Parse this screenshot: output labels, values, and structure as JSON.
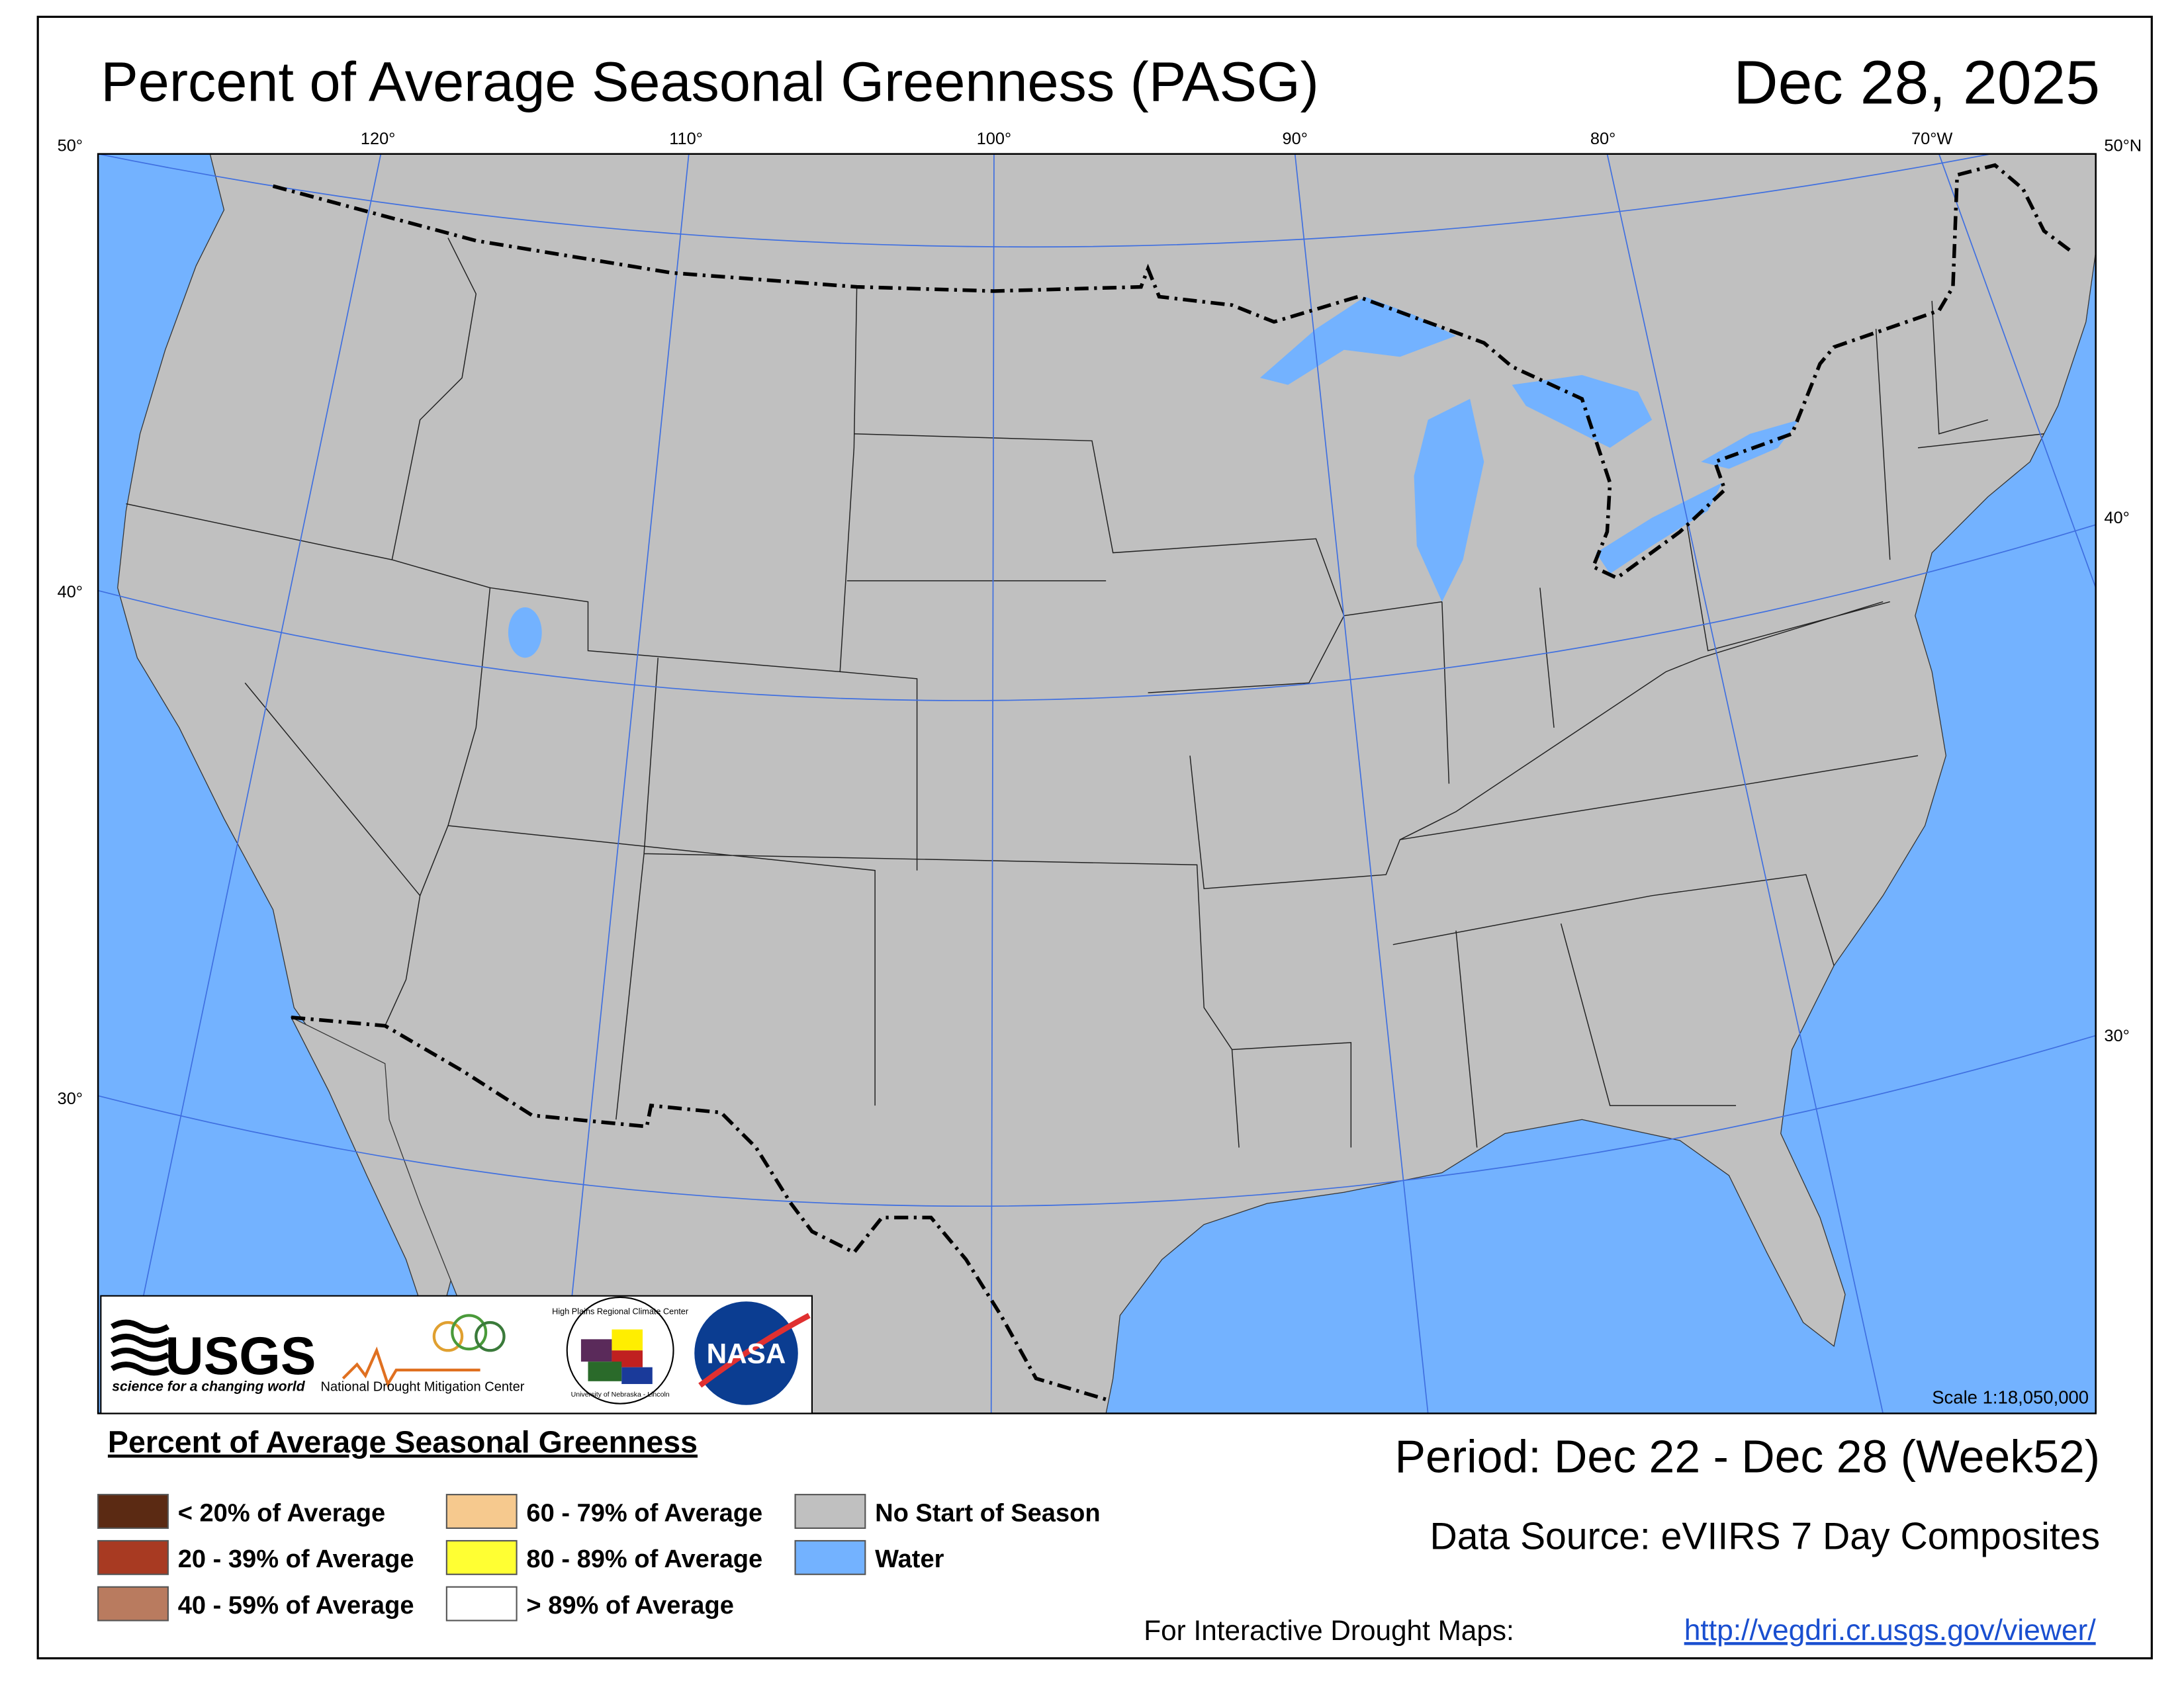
{
  "header": {
    "title": "Percent of Average Seasonal Greenness (PASG)",
    "date": "Dec 28, 2025"
  },
  "graticule": {
    "top": [
      "120°",
      "110°",
      "100°",
      "90°",
      "80°",
      "70°W"
    ],
    "left": [
      "50°",
      "40°",
      "30°"
    ],
    "right": [
      "50°N",
      "40°",
      "30°"
    ]
  },
  "logos": {
    "usgs": "USGS",
    "usgs_tagline": "science for a changing world",
    "ndmc": "National Drought Mitigation Center",
    "hprcc": "High Plains Regional Climate Center",
    "hprcc_sub": "University of Nebraska - Lincoln",
    "nasa": "NASA"
  },
  "scale": "Scale 1:18,050,000",
  "legend": {
    "title": "Percent of Average Seasonal Greenness",
    "items": [
      {
        "label": "< 20% of Average",
        "color": "#5b2a13"
      },
      {
        "label": "20 - 39% of Average",
        "color": "#a83a22"
      },
      {
        "label": "40 - 59% of Average",
        "color": "#b97b5f"
      },
      {
        "label": "60 - 79% of Average",
        "color": "#f6c98e"
      },
      {
        "label": "80 - 89% of Average",
        "color": "#ffff33"
      },
      {
        "label": "> 89% of Average",
        "color": "#ffffff"
      },
      {
        "label": "No Start of Season",
        "color": "#c0c0c0"
      },
      {
        "label": "Water",
        "color": "#73b2ff"
      }
    ]
  },
  "period": "Period:  Dec 22 - Dec 28 (Week52)",
  "source": "Data Source:  eVIIRS 7 Day Composites",
  "footer": {
    "prompt": "For Interactive Drought Maps:",
    "link": "http://vegdri.cr.usgs.gov/viewer/"
  }
}
